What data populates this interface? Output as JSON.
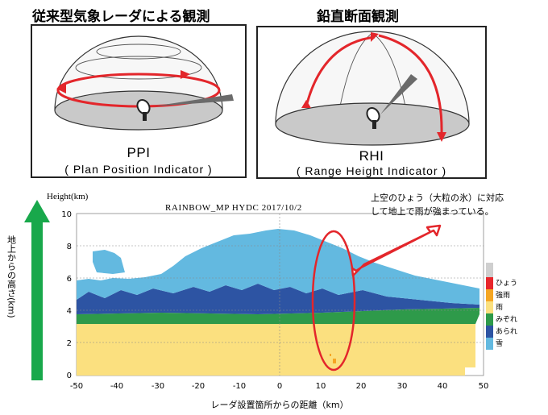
{
  "left_panel": {
    "title": "従来型気象レーダによる観測",
    "acronym": "PPI",
    "full_name": "( Plan Position Indicator )"
  },
  "right_panel": {
    "title": "鉛直断面観測",
    "acronym": "RHI",
    "full_name": "( Range Height Indicator )"
  },
  "chart": {
    "y_axis_title": "Height(km)",
    "plot_title": "RAINBOW_MP  HYDC  2017/10/2",
    "left_caption": "地上からの高さ(km)",
    "annotation": [
      "上空のひょう（大粒の氷）に対応",
      "して地上で雨が強まっている。"
    ],
    "x_label": "レーダ設置箇所からの距離（km）",
    "x_ticks": [
      "-50",
      "-40",
      "-30",
      "-20",
      "-10",
      "0",
      "10",
      "20",
      "30",
      "40",
      "50"
    ],
    "y_ticks": [
      "10",
      "8",
      "6",
      "4",
      "2",
      "0"
    ],
    "legend": [
      {
        "label": "ひょう",
        "color": "#e8262b"
      },
      {
        "label": "強雨",
        "color": "#f5a623"
      },
      {
        "label": "雨",
        "color": "#fbe07f"
      },
      {
        "label": "みぞれ",
        "color": "#2e9a4a"
      },
      {
        "label": "あられ",
        "color": "#2d54a3"
      },
      {
        "label": "雪",
        "color": "#63b9e0"
      }
    ],
    "colors": {
      "snow": "#63b9e0",
      "graupel": "#2d54a3",
      "sleet": "#2e9a4a",
      "rain": "#fbe07f",
      "heavy_rain": "#f5a623",
      "hail": "#e8262b",
      "arrow_green": "#18a84b",
      "highlight_red": "#e3262b"
    }
  }
}
